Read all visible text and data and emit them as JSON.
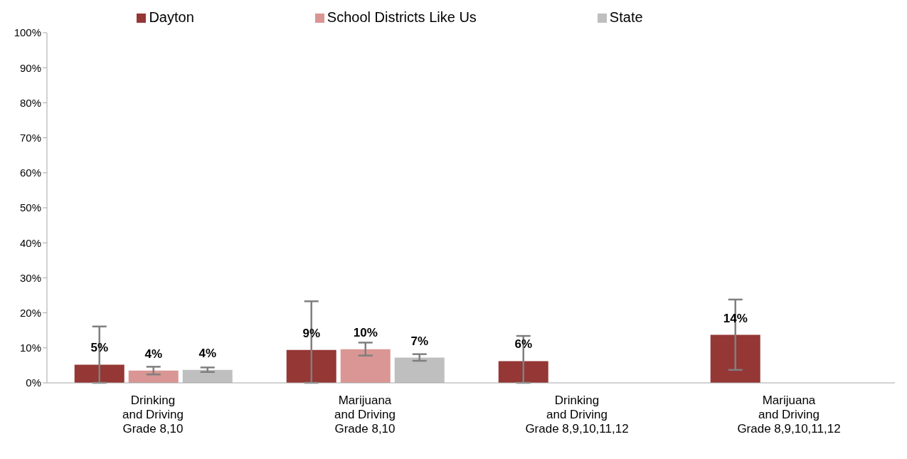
{
  "chart_data": {
    "type": "bar",
    "categories": [
      "Drinking\nand Driving\nGrade 8,10",
      "Marijuana\nand Driving\nGrade 8,10",
      "Drinking\nand Driving\nGrade 8,9,10,11,12",
      "Marijuana\nand Driving\nGrade 8,9,10,11,12"
    ],
    "series": [
      {
        "name": "Dayton",
        "color": "#953735",
        "values": [
          5.2,
          9.4,
          6.2,
          13.7
        ],
        "errors": [
          [
            0,
            16.1
          ],
          [
            0,
            23.3
          ],
          [
            0,
            13.4
          ],
          [
            3.7,
            23.8
          ]
        ],
        "value_labels": [
          "5%",
          "9%",
          "6%",
          "14%"
        ]
      },
      {
        "name": "School Districts Like Us",
        "color": "#d99694",
        "values": [
          3.5,
          9.6,
          null,
          null
        ],
        "errors": [
          [
            2.4,
            4.6
          ],
          [
            7.8,
            11.5
          ],
          null,
          null
        ],
        "value_labels": [
          "4%",
          "10%",
          null,
          null
        ]
      },
      {
        "name": "State",
        "color": "#bfbfbf",
        "values": [
          3.7,
          7.2,
          null,
          null
        ],
        "errors": [
          [
            3.1,
            4.4
          ],
          [
            6.3,
            8.2
          ],
          null,
          null
        ],
        "value_labels": [
          "4%",
          "7%",
          null,
          null
        ]
      }
    ],
    "ylim": [
      0,
      100
    ],
    "yticks": [
      {
        "value": 0,
        "label": "0%"
      },
      {
        "value": 10,
        "label": "10%"
      },
      {
        "value": 20,
        "label": "20%"
      },
      {
        "value": 30,
        "label": "30%"
      },
      {
        "value": 40,
        "label": "40%"
      },
      {
        "value": 50,
        "label": "50%"
      },
      {
        "value": 60,
        "label": "60%"
      },
      {
        "value": 70,
        "label": "70%"
      },
      {
        "value": 80,
        "label": "80%"
      },
      {
        "value": 90,
        "label": "90%"
      },
      {
        "value": 100,
        "label": "100%"
      }
    ],
    "grid": false,
    "legend": "top"
  }
}
